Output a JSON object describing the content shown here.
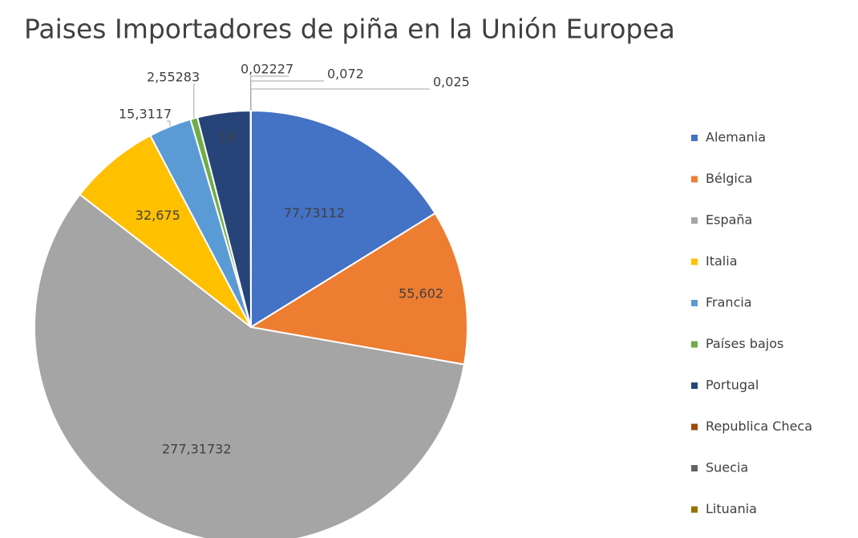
{
  "chart_data": {
    "type": "pie",
    "title": "Paises Importadores de piña en la Unión Europea",
    "categories": [
      "Alemania",
      "Bélgica",
      "España",
      "Italia",
      "Francia",
      "Países bajos",
      "Portugal",
      "Republica Checa",
      "Suecia",
      "Lituania"
    ],
    "values": [
      77.73112,
      55.602,
      277.31732,
      32.675,
      15.3117,
      2.55283,
      19,
      0.02227,
      0.072,
      0.025
    ],
    "value_labels": [
      "77,73112",
      "55,602",
      "277,31732",
      "32,675",
      "15,3117",
      "2,55283",
      "19",
      "0,02227",
      "0,072",
      "0,025"
    ],
    "colors": [
      "#4472c4",
      "#ed7d31",
      "#a5a5a5",
      "#ffc000",
      "#5b9bd5",
      "#70ad47",
      "#264478",
      "#9e480e",
      "#636363",
      "#997300"
    ],
    "legend": "right"
  }
}
